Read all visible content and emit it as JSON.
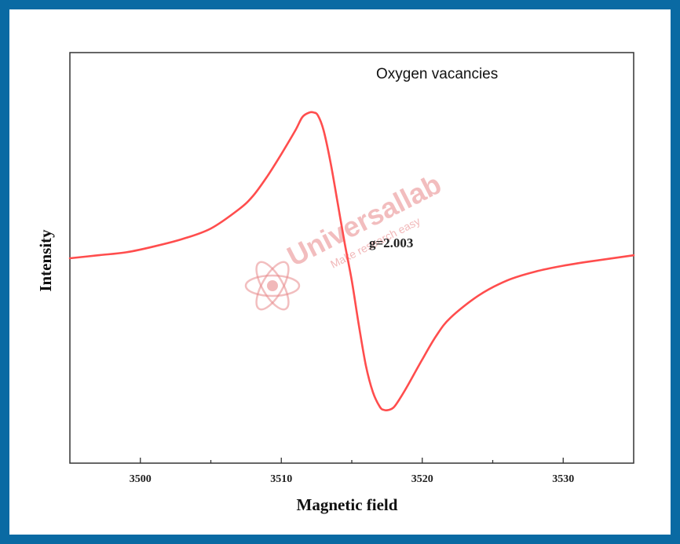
{
  "chart_data": {
    "type": "line",
    "title": "Oxygen vacancies",
    "xlabel": "Magnetic field",
    "ylabel": "Intensity",
    "xlim": [
      3495,
      3535
    ],
    "ylim": [
      -1.05,
      1.05
    ],
    "xticks": [
      3500,
      3510,
      3520,
      3530
    ],
    "annotation": "g=2.003",
    "grid": false,
    "line_color": "#ff4d4d",
    "series": [
      {
        "x": [
          3495,
          3497,
          3499,
          3501,
          3503,
          3505,
          3507,
          3508,
          3509,
          3510,
          3511,
          3511.5,
          3512,
          3512.3,
          3512.6,
          3513,
          3513.5,
          3514,
          3514.5,
          3515,
          3515.5,
          3516,
          3516.5,
          3517,
          3517.3,
          3517.6,
          3518,
          3518.5,
          3519,
          3520,
          3521,
          3522,
          3524,
          3526,
          3528,
          3530,
          3532,
          3535
        ],
        "y": [
          0.0,
          0.02,
          0.04,
          0.08,
          0.13,
          0.2,
          0.33,
          0.42,
          0.55,
          0.7,
          0.86,
          0.95,
          0.98,
          0.98,
          0.96,
          0.86,
          0.64,
          0.37,
          0.1,
          -0.15,
          -0.45,
          -0.72,
          -0.9,
          -1.0,
          -1.02,
          -1.02,
          -1.0,
          -0.93,
          -0.85,
          -0.68,
          -0.52,
          -0.4,
          -0.25,
          -0.15,
          -0.09,
          -0.05,
          -0.02,
          0.02
        ]
      }
    ]
  },
  "watermark": {
    "brand": "Universallab",
    "tagline": "Make research easy",
    "color": "#e8888a"
  }
}
